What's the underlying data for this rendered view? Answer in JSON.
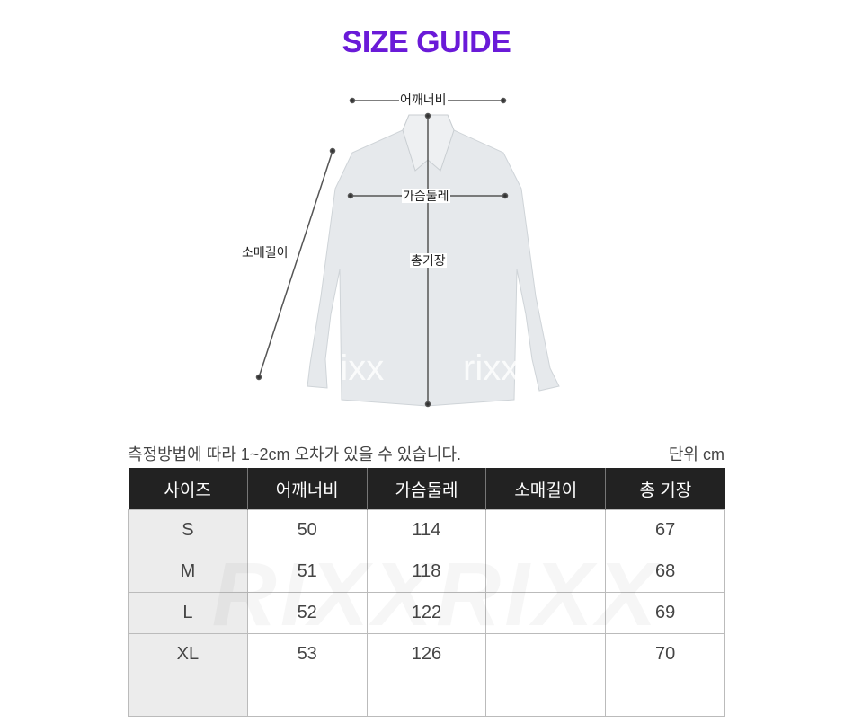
{
  "title": "SIZE GUIDE",
  "diagram": {
    "shoulder_label": "어깨너비",
    "chest_label": "가슴둘레",
    "sleeve_label": "소매길이",
    "length_label": "총기장",
    "watermark": "rixx"
  },
  "note": "측정방법에 따라 1~2cm 오차가 있을 수 있습니다.",
  "unit": "단위 cm",
  "table": {
    "headers": [
      "사이즈",
      "어깨너비",
      "가슴둘레",
      "소매길이",
      "총 기장"
    ],
    "rows": [
      [
        "S",
        "50",
        "114",
        "",
        "67"
      ],
      [
        "M",
        "51",
        "118",
        "",
        "68"
      ],
      [
        "L",
        "52",
        "122",
        "",
        "69"
      ],
      [
        "XL",
        "53",
        "126",
        "",
        "70"
      ],
      [
        "",
        "",
        "",
        "",
        ""
      ]
    ],
    "watermark": "RIXXRIXX"
  },
  "colors": {
    "title": "#6a1ad8",
    "header_bg": "#222222",
    "size_col_bg": "#ececec"
  }
}
